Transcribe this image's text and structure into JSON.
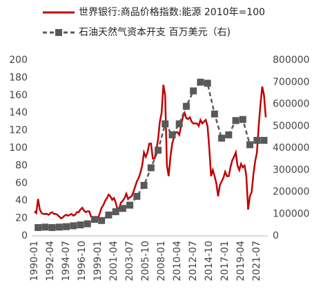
{
  "chart_data": {
    "type": "line",
    "x": [
      "1990-01",
      "1990-04",
      "1990-07",
      "1990-10",
      "1991-01",
      "1991-04",
      "1991-07",
      "1991-10",
      "1992-01",
      "1992-04",
      "1992-07",
      "1992-10",
      "1993-01",
      "1993-04",
      "1993-07",
      "1993-10",
      "1994-01",
      "1994-04",
      "1994-07",
      "1994-10",
      "1995-01",
      "1995-04",
      "1995-07",
      "1995-10",
      "1996-01",
      "1996-04",
      "1996-07",
      "1996-10",
      "1997-01",
      "1997-04",
      "1997-07",
      "1997-10",
      "1998-01",
      "1998-04",
      "1998-07",
      "1998-10",
      "1999-01",
      "1999-04",
      "1999-07",
      "1999-10",
      "2000-01",
      "2000-04",
      "2000-07",
      "2000-10",
      "2001-01",
      "2001-04",
      "2001-07",
      "2001-10",
      "2002-01",
      "2002-04",
      "2002-07",
      "2002-10",
      "2003-01",
      "2003-04",
      "2003-07",
      "2003-10",
      "2004-01",
      "2004-04",
      "2004-07",
      "2004-10",
      "2005-01",
      "2005-04",
      "2005-07",
      "2005-10",
      "2006-01",
      "2006-04",
      "2006-07",
      "2006-10",
      "2007-01",
      "2007-04",
      "2007-07",
      "2007-10",
      "2008-01",
      "2008-04",
      "2008-07",
      "2008-10",
      "2009-01",
      "2009-04",
      "2009-07",
      "2009-10",
      "2010-01",
      "2010-04",
      "2010-07",
      "2010-10",
      "2011-01",
      "2011-04",
      "2011-07",
      "2011-10",
      "2012-01",
      "2012-04",
      "2012-07",
      "2012-10",
      "2013-01",
      "2013-04",
      "2013-07",
      "2013-10",
      "2014-01",
      "2014-04",
      "2014-07",
      "2014-10",
      "2015-01",
      "2015-04",
      "2015-07",
      "2015-10",
      "2016-01",
      "2016-04",
      "2016-07",
      "2016-10",
      "2017-01",
      "2017-04",
      "2017-07",
      "2017-10",
      "2018-01",
      "2018-04",
      "2018-07",
      "2018-10",
      "2019-01",
      "2019-04",
      "2019-07",
      "2019-10",
      "2020-01",
      "2020-04",
      "2020-07",
      "2020-10",
      "2021-01",
      "2021-04",
      "2021-07",
      "2021-10",
      "2022-01",
      "2022-04",
      "2022-07",
      "2022-10"
    ],
    "xticks": [
      "1990-01",
      "1992-04",
      "1994-07",
      "1996-10",
      "1999-01",
      "2001-04",
      "2003-07",
      "2005-10",
      "2008-01",
      "2010-04",
      "2012-07",
      "2014-10",
      "2017-01",
      "2019-04",
      "2021-07"
    ],
    "ylim": [
      0,
      200
    ],
    "yticks": [
      0,
      20,
      40,
      60,
      80,
      100,
      120,
      140,
      160,
      180,
      200
    ],
    "y2lim": [
      0,
      800000
    ],
    "y2ticks": [
      0,
      100000,
      200000,
      300000,
      400000,
      500000,
      600000,
      700000,
      800000
    ],
    "series": [
      {
        "name": "世界银行:商品价格指数:能源 2010年=100",
        "color": "#c00000",
        "values": [
          28,
          26,
          42,
          30,
          26,
          25,
          25,
          25,
          24,
          26,
          27,
          25,
          25,
          24,
          22,
          20,
          21,
          23,
          24,
          23,
          24,
          25,
          23,
          24,
          27,
          27,
          30,
          32,
          29,
          27,
          28,
          28,
          22,
          20,
          20,
          18,
          20,
          26,
          32,
          35,
          40,
          43,
          47,
          45,
          41,
          43,
          38,
          30,
          32,
          38,
          40,
          43,
          48,
          42,
          44,
          45,
          50,
          56,
          62,
          66,
          72,
          80,
          95,
          90,
          95,
          105,
          105,
          88,
          88,
          98,
          110,
          130,
          140,
          172,
          160,
          80,
          68,
          90,
          105,
          112,
          118,
          118,
          115,
          125,
          135,
          140,
          134,
          133,
          135,
          130,
          128,
          128,
          128,
          125,
          132,
          128,
          130,
          132,
          125,
          100,
          68,
          75,
          68,
          60,
          45,
          58,
          62,
          66,
          73,
          68,
          68,
          78,
          86,
          90,
          95,
          80,
          75,
          82,
          78,
          80,
          68,
          30,
          45,
          50,
          70,
          85,
          95,
          125,
          150,
          170,
          160,
          135
        ]
      },
      {
        "name": "石油天然气资本开支 百万美元（右)",
        "color": "#595959",
        "axis": "y2",
        "x": [
          "1990-07",
          "1991-07",
          "1992-07",
          "1993-07",
          "1994-07",
          "1995-07",
          "1996-07",
          "1997-07",
          "1998-07",
          "1999-07",
          "2000-07",
          "2001-07",
          "2002-07",
          "2003-07",
          "2004-07",
          "2005-07",
          "2006-07",
          "2007-07",
          "2008-07",
          "2009-07",
          "2010-07",
          "2011-07",
          "2012-07",
          "2013-07",
          "2014-07",
          "2015-07",
          "2016-07",
          "2017-07",
          "2018-07",
          "2019-07",
          "2020-07",
          "2021-07",
          "2022-07"
        ],
        "values": [
          38000,
          40000,
          38000,
          40000,
          42000,
          46000,
          50000,
          55000,
          75000,
          70000,
          95000,
          110000,
          125000,
          140000,
          180000,
          230000,
          310000,
          390000,
          510000,
          460000,
          510000,
          590000,
          660000,
          700000,
          695000,
          555000,
          445000,
          460000,
          525000,
          530000,
          415000,
          435000,
          435000
        ]
      }
    ]
  }
}
